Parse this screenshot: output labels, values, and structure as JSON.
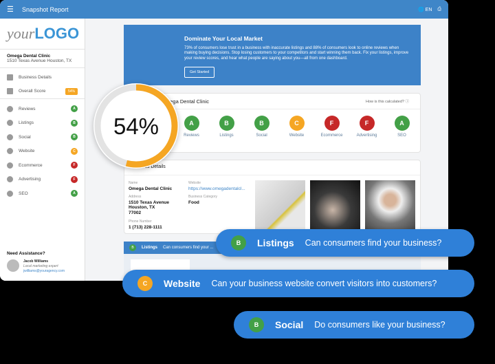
{
  "header": {
    "title": "Snapshot Report",
    "lang": "EN"
  },
  "sidebar": {
    "logo_a": "your",
    "logo_b": "LOGO",
    "business_name": "Omega Dental Clinic",
    "business_address": "1510 Texas Avenue Houston, TX",
    "nav": [
      {
        "label": "Business Details",
        "icon": "building-icon"
      },
      {
        "label": "Overall Score",
        "icon": "bar-chart-icon",
        "badge": "54%"
      }
    ],
    "sections": [
      {
        "label": "Reviews",
        "grade": "A",
        "color": "#43a047"
      },
      {
        "label": "Listings",
        "grade": "B",
        "color": "#43a047"
      },
      {
        "label": "Social",
        "grade": "B",
        "color": "#43a047"
      },
      {
        "label": "Website",
        "grade": "C",
        "color": "#f5a623"
      },
      {
        "label": "Ecommerce",
        "grade": "F",
        "color": "#c62828"
      },
      {
        "label": "Advertising",
        "grade": "F",
        "color": "#c62828"
      },
      {
        "label": "SEO",
        "grade": "A",
        "color": "#43a047"
      }
    ],
    "assist": {
      "title": "Need Assistance?",
      "name": "Jacob Williams",
      "role": "Local marketing expert",
      "email": "jwilliams@youragency.com"
    }
  },
  "banner": {
    "title": "Dominate Your Local Market",
    "text": "73% of consumers lose trust in a business with inaccurate listings and 88% of consumers look to online reviews when making buying decisions. Stop losing customers to your competitors and start winning them back. Fix your listings, improve your review scores, and hear what people are saying about you—all from one dashboard.",
    "button": "Get Started"
  },
  "score": {
    "title": "mega Dental Clinic",
    "how": "How is this calculated?",
    "value": "54%",
    "percent": 54
  },
  "details": {
    "title": "Business Details",
    "name_label": "Name",
    "name": "Omega Dental Clinic",
    "address_label": "Address",
    "address1": "1510 Texas Avenue",
    "address2": "Houston, TX",
    "address3": "77002",
    "phone_label": "Phone Number",
    "phone": "1 (713) 228-1111",
    "website_label": "Website",
    "website": "https://www.omegadentalcl...",
    "category_label": "Business Category",
    "category": "Food"
  },
  "strip": {
    "grade": "B",
    "name": "Listings",
    "question": "Can consumers find your ..."
  },
  "callouts": [
    {
      "grade": "B",
      "name": "Listings",
      "question": "Can consumers find your business?",
      "color": "#43a047"
    },
    {
      "grade": "C",
      "name": "Website",
      "question": "Can your business website convert visitors into customers?",
      "color": "#f5a623"
    },
    {
      "grade": "B",
      "name": "Social",
      "question": "Do consumers like your business?",
      "color": "#43a047"
    }
  ],
  "colors": {
    "primary": "#3f86c8",
    "accent": "#f5a623"
  }
}
